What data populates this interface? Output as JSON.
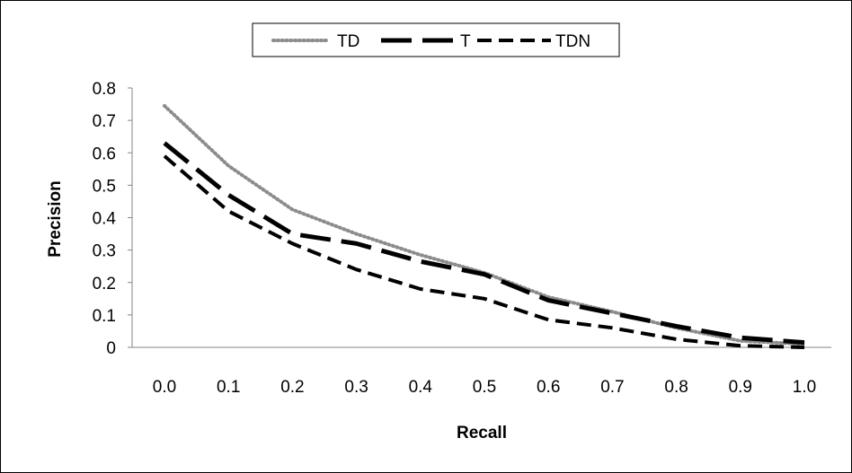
{
  "chart_data": {
    "type": "line",
    "title": "",
    "xlabel": "Recall",
    "ylabel": "Precision",
    "x": [
      0.0,
      0.1,
      0.2,
      0.3,
      0.4,
      0.5,
      0.6,
      0.7,
      0.8,
      0.9,
      1.0
    ],
    "x_tick_labels": [
      "0.0",
      "0.1",
      "0.2",
      "0.3",
      "0.4",
      "0.5",
      "0.6",
      "0.7",
      "0.8",
      "0.9",
      "1.0"
    ],
    "y_tick_labels": [
      "0",
      "0.1",
      "0.2",
      "0.3",
      "0.4",
      "0.5",
      "0.6",
      "0.7",
      "0.8"
    ],
    "ylim": [
      0,
      0.8
    ],
    "grid": false,
    "legend_position": "top-center",
    "series": [
      {
        "name": "TD",
        "style": "dotted",
        "color": "#8c8c8c",
        "values": [
          0.745,
          0.56,
          0.425,
          0.35,
          0.285,
          0.23,
          0.155,
          0.11,
          0.06,
          0.02,
          0.01
        ]
      },
      {
        "name": "T",
        "style": "long-dash",
        "color": "#000000",
        "values": [
          0.63,
          0.47,
          0.35,
          0.32,
          0.265,
          0.225,
          0.145,
          0.105,
          0.065,
          0.03,
          0.015
        ]
      },
      {
        "name": "TDN",
        "style": "short-dash",
        "color": "#000000",
        "values": [
          0.59,
          0.42,
          0.32,
          0.24,
          0.18,
          0.15,
          0.085,
          0.06,
          0.025,
          0.005,
          0.0
        ]
      }
    ]
  }
}
